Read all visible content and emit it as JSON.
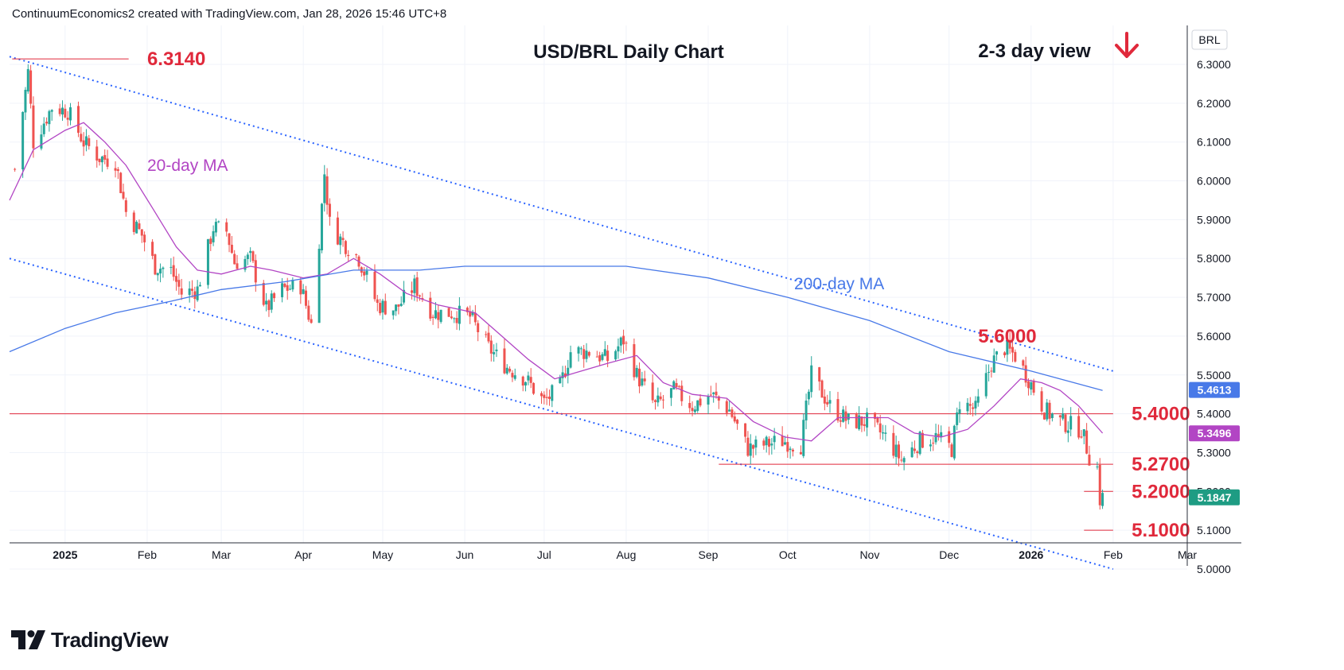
{
  "header": {
    "attribution": "ContinuumEconomics2 created with TradingView.com, Jan 28, 2026 15:46 UTC+8"
  },
  "footer": {
    "brand": "TradingView"
  },
  "chart_data": {
    "type": "candlestick",
    "title": "USD/BRL Daily Chart",
    "view_text": "2-3 day view",
    "view_direction": "down",
    "symbol": "BRL",
    "ylim": [
      4.97,
      6.33
    ],
    "y_ticks": [
      "6.3000",
      "6.2000",
      "6.1000",
      "6.0000",
      "5.9000",
      "5.8000",
      "5.7000",
      "5.6000",
      "5.5000",
      "5.4000",
      "5.3000",
      "5.2000",
      "5.1000",
      "5.0000"
    ],
    "x_ticks": [
      {
        "label": "2025",
        "date": "2025-01-01",
        "bold": true
      },
      {
        "label": "Feb",
        "date": "2025-02-01",
        "bold": false
      },
      {
        "label": "Mar",
        "date": "2025-03-01",
        "bold": false
      },
      {
        "label": "Apr",
        "date": "2025-04-01",
        "bold": false
      },
      {
        "label": "May",
        "date": "2025-05-01",
        "bold": false
      },
      {
        "label": "Jun",
        "date": "2025-06-01",
        "bold": false
      },
      {
        "label": "Jul",
        "date": "2025-07-01",
        "bold": false
      },
      {
        "label": "Aug",
        "date": "2025-08-01",
        "bold": false
      },
      {
        "label": "Sep",
        "date": "2025-09-01",
        "bold": false
      },
      {
        "label": "Oct",
        "date": "2025-10-01",
        "bold": false
      },
      {
        "label": "Nov",
        "date": "2025-11-01",
        "bold": false
      },
      {
        "label": "Dec",
        "date": "2025-12-01",
        "bold": false
      },
      {
        "label": "2026",
        "date": "2026-01-01",
        "bold": true
      },
      {
        "label": "Feb",
        "date": "2026-02-01",
        "bold": false
      },
      {
        "label": "Mar",
        "date": "2026-03-01",
        "bold": false
      }
    ],
    "x_start": "2024-12-11",
    "x_end": "2026-03-01",
    "price_path": [
      {
        "date": "2024-12-13",
        "close": 6.03
      },
      {
        "date": "2024-12-18",
        "close": 6.28
      },
      {
        "date": "2024-12-20",
        "close": 6.1
      },
      {
        "date": "2024-12-27",
        "close": 6.19
      },
      {
        "date": "2025-01-02",
        "close": 6.18
      },
      {
        "date": "2025-01-08",
        "close": 6.1
      },
      {
        "date": "2025-01-14",
        "close": 6.06
      },
      {
        "date": "2025-01-20",
        "close": 6.05
      },
      {
        "date": "2025-01-24",
        "close": 5.92
      },
      {
        "date": "2025-01-30",
        "close": 5.86
      },
      {
        "date": "2025-02-04",
        "close": 5.78
      },
      {
        "date": "2025-02-10",
        "close": 5.77
      },
      {
        "date": "2025-02-14",
        "close": 5.71
      },
      {
        "date": "2025-02-20",
        "close": 5.72
      },
      {
        "date": "2025-02-26",
        "close": 5.88
      },
      {
        "date": "2025-03-03",
        "close": 5.87
      },
      {
        "date": "2025-03-06",
        "close": 5.79
      },
      {
        "date": "2025-03-12",
        "close": 5.8
      },
      {
        "date": "2025-03-18",
        "close": 5.67
      },
      {
        "date": "2025-03-24",
        "close": 5.72
      },
      {
        "date": "2025-03-31",
        "close": 5.73
      },
      {
        "date": "2025-04-04",
        "close": 5.63
      },
      {
        "date": "2025-04-07",
        "close": 5.85
      },
      {
        "date": "2025-04-09",
        "close": 6.02
      },
      {
        "date": "2025-04-11",
        "close": 5.89
      },
      {
        "date": "2025-04-15",
        "close": 5.85
      },
      {
        "date": "2025-04-22",
        "close": 5.8
      },
      {
        "date": "2025-04-29",
        "close": 5.68
      },
      {
        "date": "2025-05-06",
        "close": 5.67
      },
      {
        "date": "2025-05-13",
        "close": 5.73
      },
      {
        "date": "2025-05-20",
        "close": 5.66
      },
      {
        "date": "2025-05-27",
        "close": 5.66
      },
      {
        "date": "2025-06-03",
        "close": 5.65
      },
      {
        "date": "2025-06-10",
        "close": 5.57
      },
      {
        "date": "2025-06-17",
        "close": 5.52
      },
      {
        "date": "2025-06-24",
        "close": 5.49
      },
      {
        "date": "2025-07-01",
        "close": 5.43
      },
      {
        "date": "2025-07-07",
        "close": 5.47
      },
      {
        "date": "2025-07-11",
        "close": 5.56
      },
      {
        "date": "2025-07-18",
        "close": 5.56
      },
      {
        "date": "2025-07-25",
        "close": 5.54
      },
      {
        "date": "2025-07-31",
        "close": 5.59
      },
      {
        "date": "2025-08-05",
        "close": 5.5
      },
      {
        "date": "2025-08-12",
        "close": 5.42
      },
      {
        "date": "2025-08-19",
        "close": 5.46
      },
      {
        "date": "2025-08-26",
        "close": 5.42
      },
      {
        "date": "2025-09-02",
        "close": 5.45
      },
      {
        "date": "2025-09-09",
        "close": 5.41
      },
      {
        "date": "2025-09-16",
        "close": 5.31
      },
      {
        "date": "2025-09-22",
        "close": 5.32
      },
      {
        "date": "2025-09-29",
        "close": 5.33
      },
      {
        "date": "2025-10-06",
        "close": 5.32
      },
      {
        "date": "2025-10-10",
        "close": 5.5
      },
      {
        "date": "2025-10-17",
        "close": 5.42
      },
      {
        "date": "2025-10-24",
        "close": 5.38
      },
      {
        "date": "2025-10-31",
        "close": 5.38
      },
      {
        "date": "2025-11-07",
        "close": 5.34
      },
      {
        "date": "2025-11-13",
        "close": 5.28
      },
      {
        "date": "2025-11-20",
        "close": 5.33
      },
      {
        "date": "2025-11-26",
        "close": 5.34
      },
      {
        "date": "2025-12-02",
        "close": 5.31
      },
      {
        "date": "2025-12-05",
        "close": 5.43
      },
      {
        "date": "2025-12-11",
        "close": 5.41
      },
      {
        "date": "2025-12-17",
        "close": 5.53
      },
      {
        "date": "2025-12-22",
        "close": 5.57
      },
      {
        "date": "2025-12-26",
        "close": 5.55
      },
      {
        "date": "2025-12-31",
        "close": 5.49
      },
      {
        "date": "2026-01-06",
        "close": 5.41
      },
      {
        "date": "2026-01-12",
        "close": 5.38
      },
      {
        "date": "2026-01-16",
        "close": 5.37
      },
      {
        "date": "2026-01-20",
        "close": 5.36
      },
      {
        "date": "2026-01-23",
        "close": 5.29
      },
      {
        "date": "2026-01-26",
        "close": 5.26
      },
      {
        "date": "2026-01-27",
        "close": 5.18
      },
      {
        "date": "2026-01-28",
        "close": 5.1847
      }
    ],
    "ma20": {
      "label": "20-day MA",
      "color": "#b245c4",
      "points": [
        {
          "date": "2024-12-11",
          "value": 5.95
        },
        {
          "date": "2024-12-20",
          "value": 6.08
        },
        {
          "date": "2025-01-01",
          "value": 6.13
        },
        {
          "date": "2025-01-08",
          "value": 6.15
        },
        {
          "date": "2025-01-16",
          "value": 6.1
        },
        {
          "date": "2025-01-24",
          "value": 6.04
        },
        {
          "date": "2025-02-03",
          "value": 5.93
        },
        {
          "date": "2025-02-12",
          "value": 5.83
        },
        {
          "date": "2025-02-20",
          "value": 5.77
        },
        {
          "date": "2025-03-01",
          "value": 5.76
        },
        {
          "date": "2025-03-12",
          "value": 5.78
        },
        {
          "date": "2025-03-20",
          "value": 5.77
        },
        {
          "date": "2025-04-01",
          "value": 5.75
        },
        {
          "date": "2025-04-10",
          "value": 5.76
        },
        {
          "date": "2025-04-20",
          "value": 5.8
        },
        {
          "date": "2025-04-30",
          "value": 5.76
        },
        {
          "date": "2025-05-10",
          "value": 5.71
        },
        {
          "date": "2025-05-22",
          "value": 5.68
        },
        {
          "date": "2025-06-05",
          "value": 5.66
        },
        {
          "date": "2025-06-15",
          "value": 5.6
        },
        {
          "date": "2025-06-25",
          "value": 5.54
        },
        {
          "date": "2025-07-05",
          "value": 5.49
        },
        {
          "date": "2025-07-15",
          "value": 5.51
        },
        {
          "date": "2025-07-25",
          "value": 5.53
        },
        {
          "date": "2025-08-05",
          "value": 5.55
        },
        {
          "date": "2025-08-15",
          "value": 5.48
        },
        {
          "date": "2025-08-26",
          "value": 5.45
        },
        {
          "date": "2025-09-08",
          "value": 5.44
        },
        {
          "date": "2025-09-18",
          "value": 5.38
        },
        {
          "date": "2025-09-30",
          "value": 5.34
        },
        {
          "date": "2025-10-10",
          "value": 5.33
        },
        {
          "date": "2025-10-20",
          "value": 5.39
        },
        {
          "date": "2025-10-31",
          "value": 5.39
        },
        {
          "date": "2025-11-08",
          "value": 5.39
        },
        {
          "date": "2025-11-18",
          "value": 5.35
        },
        {
          "date": "2025-11-28",
          "value": 5.34
        },
        {
          "date": "2025-12-08",
          "value": 5.36
        },
        {
          "date": "2025-12-18",
          "value": 5.42
        },
        {
          "date": "2025-12-28",
          "value": 5.49
        },
        {
          "date": "2026-01-05",
          "value": 5.48
        },
        {
          "date": "2026-01-12",
          "value": 5.46
        },
        {
          "date": "2026-01-19",
          "value": 5.42
        },
        {
          "date": "2026-01-28",
          "value": 5.35
        }
      ]
    },
    "ma200": {
      "label": "200-day MA",
      "color": "#4879e8",
      "points": [
        {
          "date": "2024-12-11",
          "value": 5.56
        },
        {
          "date": "2025-01-01",
          "value": 5.62
        },
        {
          "date": "2025-01-20",
          "value": 5.66
        },
        {
          "date": "2025-02-10",
          "value": 5.69
        },
        {
          "date": "2025-03-01",
          "value": 5.72
        },
        {
          "date": "2025-03-25",
          "value": 5.74
        },
        {
          "date": "2025-04-20",
          "value": 5.77
        },
        {
          "date": "2025-05-15",
          "value": 5.77
        },
        {
          "date": "2025-06-01",
          "value": 5.78
        },
        {
          "date": "2025-07-01",
          "value": 5.78
        },
        {
          "date": "2025-08-01",
          "value": 5.78
        },
        {
          "date": "2025-09-01",
          "value": 5.75
        },
        {
          "date": "2025-10-01",
          "value": 5.7
        },
        {
          "date": "2025-11-01",
          "value": 5.64
        },
        {
          "date": "2025-12-01",
          "value": 5.56
        },
        {
          "date": "2026-01-01",
          "value": 5.51
        },
        {
          "date": "2026-01-28",
          "value": 5.46
        }
      ]
    },
    "trendlines": [
      {
        "name": "upper-channel",
        "from": {
          "date": "2024-12-11",
          "value": 6.32
        },
        "to": {
          "date": "2026-02-01",
          "value": 5.51
        }
      },
      {
        "name": "lower-channel",
        "from": {
          "date": "2024-12-11",
          "value": 5.8
        },
        "to": {
          "date": "2026-02-01",
          "value": 5.0
        }
      }
    ],
    "levels": [
      {
        "label": "6.3140",
        "value": 6.314,
        "from": "2024-12-12",
        "to": "2025-01-25",
        "label_date": "2025-02-01"
      },
      {
        "label": "5.6000",
        "value": 5.6,
        "label_date": "2025-12-12",
        "label_only": true
      },
      {
        "label": "5.4000",
        "value": 5.4,
        "from": "2024-12-11",
        "to": "2026-02-01",
        "label_date": "2026-02-08"
      },
      {
        "label": "5.2700",
        "value": 5.27,
        "from": "2025-09-05",
        "to": "2026-02-01",
        "label_date": "2026-02-08"
      },
      {
        "label": "5.2000",
        "value": 5.2,
        "from": "2026-01-21",
        "to": "2026-02-01",
        "label_date": "2026-02-08"
      },
      {
        "label": "5.1000",
        "value": 5.1,
        "from": "2026-01-21",
        "to": "2026-02-01",
        "label_date": "2026-02-08"
      }
    ],
    "price_badges": [
      {
        "label": "5.4613",
        "value": 5.4613,
        "color": "#4879e8"
      },
      {
        "label": "5.3496",
        "value": 5.3496,
        "color": "#b245c4"
      },
      {
        "label": "5.1847",
        "value": 5.1847,
        "color": "#1e9c83"
      }
    ],
    "colors": {
      "up": "#26a69a",
      "down": "#ef5350",
      "level": "#e0293b",
      "grid": "#f0f3fa"
    }
  }
}
